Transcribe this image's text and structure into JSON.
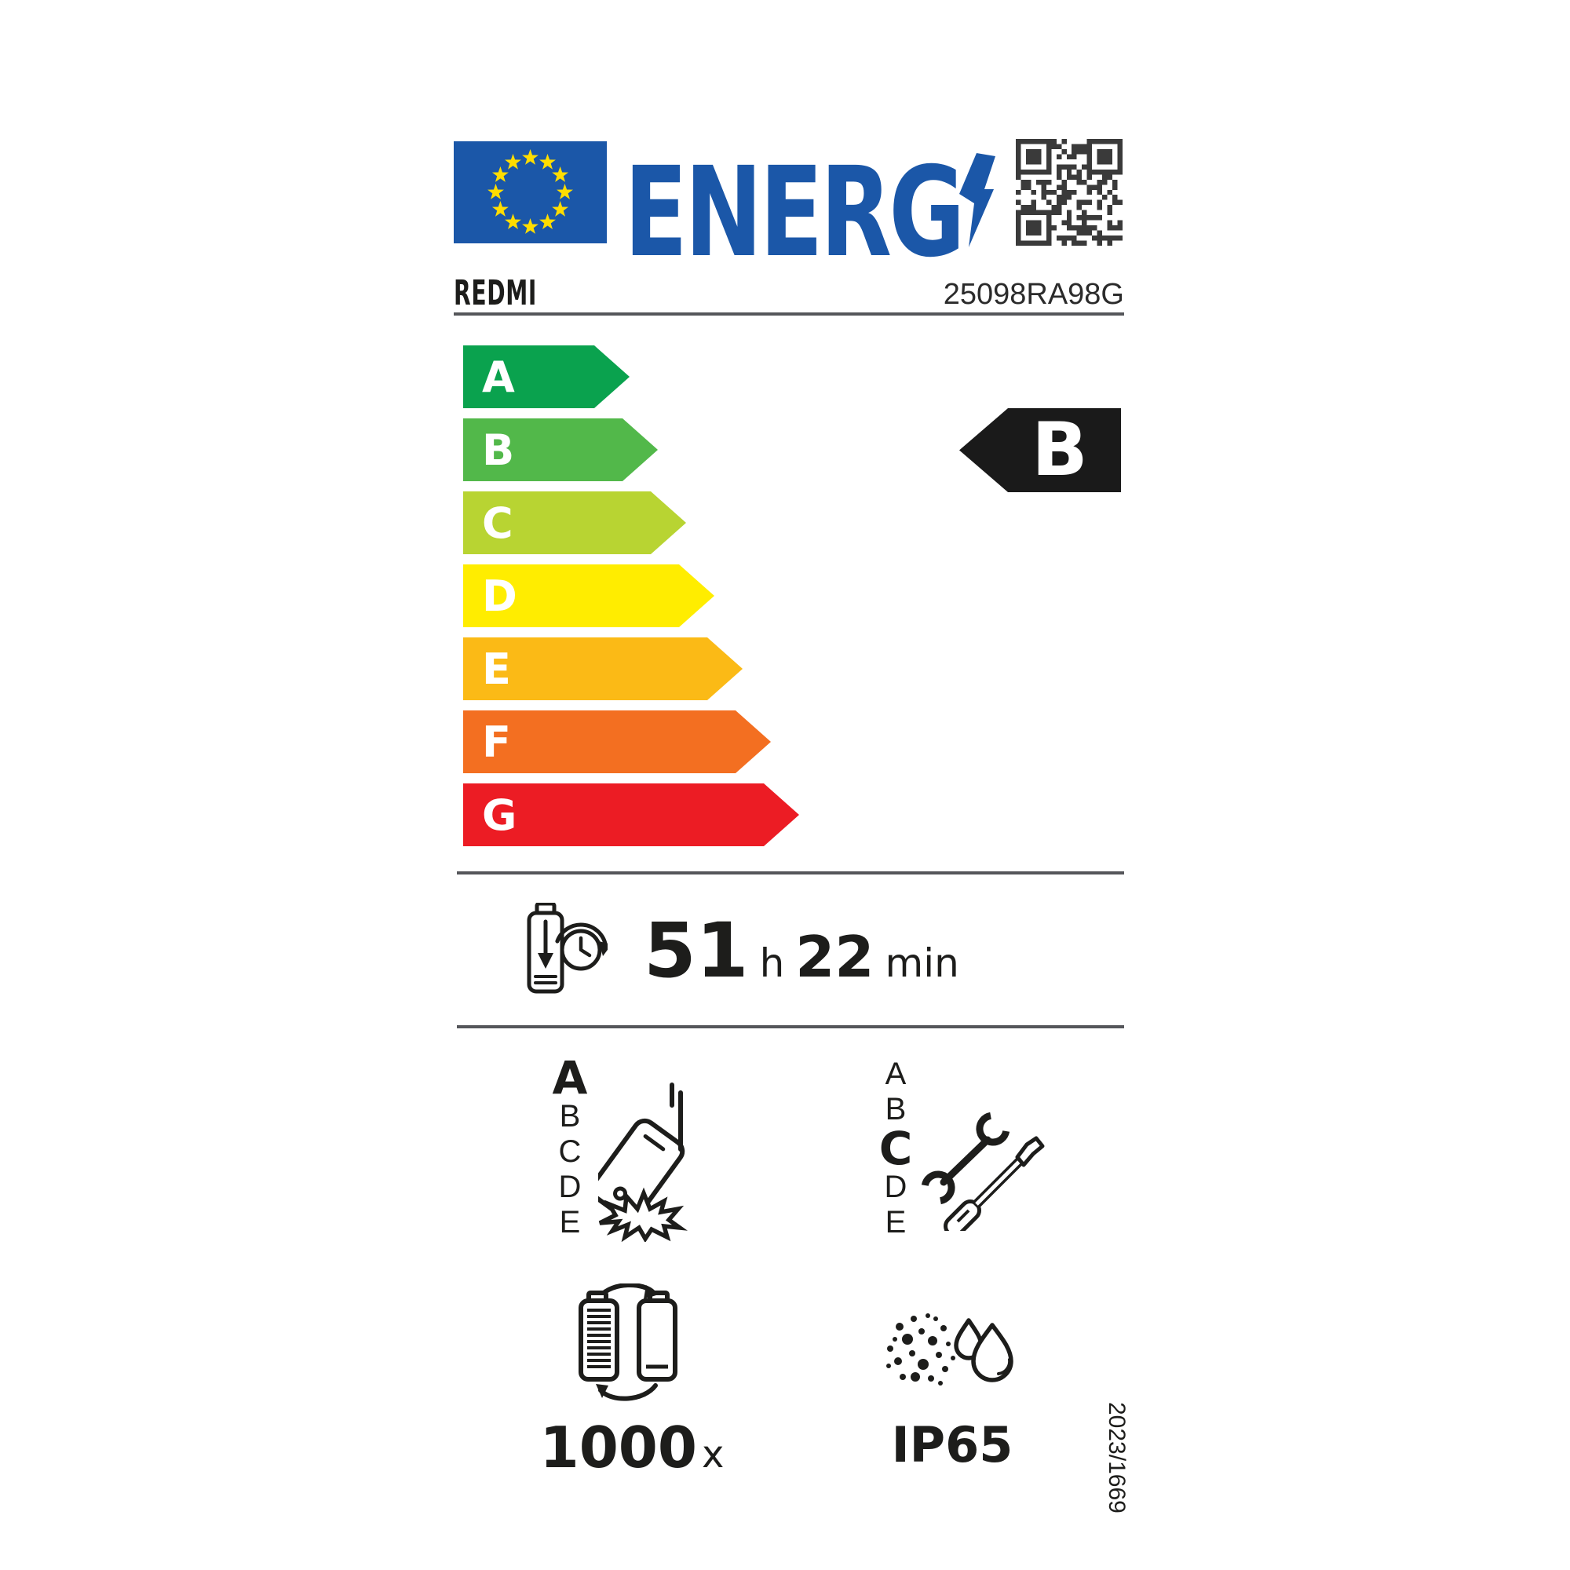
{
  "header": {
    "energy_logo_text": "ENERG",
    "brand": "REDMI",
    "model": "25098RA98G"
  },
  "colors": {
    "energy_blue": "#1b57a8",
    "star_yellow": "#ffdd00",
    "qr_dark": "#3a3a3a",
    "divider_gray": "#55565a",
    "text_black": "#1d1d1b"
  },
  "energy_scale": {
    "classes": [
      {
        "label": "A",
        "color": "#0aa24e"
      },
      {
        "label": "B",
        "color": "#52b84a"
      },
      {
        "label": "C",
        "color": "#b8d432"
      },
      {
        "label": "D",
        "color": "#ffed00"
      },
      {
        "label": "E",
        "color": "#fbba16"
      },
      {
        "label": "F",
        "color": "#f36f21"
      },
      {
        "label": "G",
        "color": "#ec1c24"
      }
    ],
    "rating": "B",
    "rating_color": "#1a1a1a"
  },
  "battery_endurance": {
    "hours": "51",
    "hours_unit": "h",
    "minutes": "22",
    "minutes_unit": "min"
  },
  "drop_resistance": {
    "scale": [
      "A",
      "B",
      "C",
      "D",
      "E"
    ],
    "value": "A"
  },
  "repairability": {
    "scale": [
      "A",
      "B",
      "C",
      "D",
      "E"
    ],
    "value": "C"
  },
  "battery_cycles": {
    "value": "1000",
    "unit": "x"
  },
  "ingress_protection": {
    "rating": "IP65"
  },
  "regulation_number": "2023/1669",
  "icons": {
    "eu-flag": "blue rectangle with 12 yellow stars",
    "lightning-bolt-icon": "blue lightning bolt forming the Y of ENERGY",
    "qr-code": "QR code",
    "battery-clock-icon": "discharging battery with clock",
    "phone-drop-icon": "falling phone with impact burst",
    "repair-tools-icon": "wrench and screwdriver",
    "battery-cycle-icon": "two batteries with circular arrows",
    "dust-water-icon": "dust particles and two water drops"
  }
}
